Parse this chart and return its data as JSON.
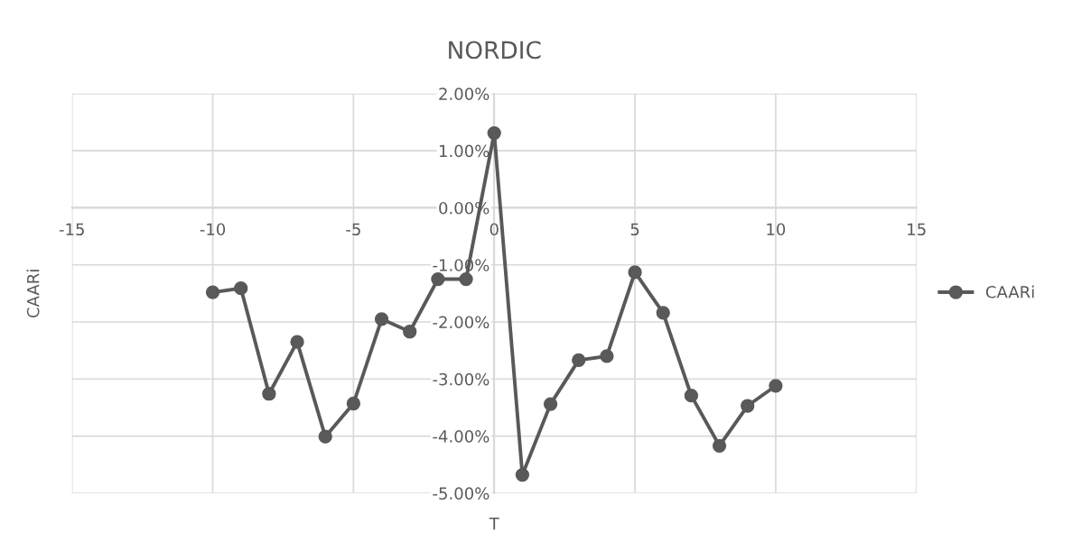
{
  "chart_data": {
    "type": "line",
    "title": "NORDIC",
    "xlabel": "T",
    "ylabel": "CAARi",
    "x": [
      -10,
      -9,
      -8,
      -7,
      -6,
      -5,
      -4,
      -3,
      -2,
      -1,
      0,
      1,
      2,
      3,
      4,
      5,
      6,
      7,
      8,
      9,
      10
    ],
    "series": [
      {
        "name": "CAARi",
        "color": "#595959",
        "values": [
          -1.48,
          -1.41,
          -3.26,
          -2.35,
          -4.01,
          -3.43,
          -1.95,
          -2.17,
          -1.25,
          -1.25,
          1.31,
          -4.68,
          -3.44,
          -2.67,
          -2.6,
          -1.13,
          -1.84,
          -3.29,
          -4.17,
          -3.47,
          -3.12
        ]
      }
    ],
    "xlim": [
      -15,
      15
    ],
    "xticks": [
      -15,
      -10,
      -5,
      0,
      5,
      10,
      15
    ],
    "ylim": [
      -5,
      2
    ],
    "yticks": [
      {
        "value": -5,
        "label": "-5.00%"
      },
      {
        "value": -4,
        "label": "-4.00%"
      },
      {
        "value": -3,
        "label": "-3.00%"
      },
      {
        "value": -2,
        "label": "-2.00%"
      },
      {
        "value": -1,
        "label": "-1.00%"
      },
      {
        "value": 0,
        "label": "0.00%"
      },
      {
        "value": 1,
        "label": "1.00%"
      },
      {
        "value": 2,
        "label": "2.00%"
      }
    ],
    "grid": true,
    "legend": "right",
    "marker": "circle",
    "line_style": "solid"
  }
}
